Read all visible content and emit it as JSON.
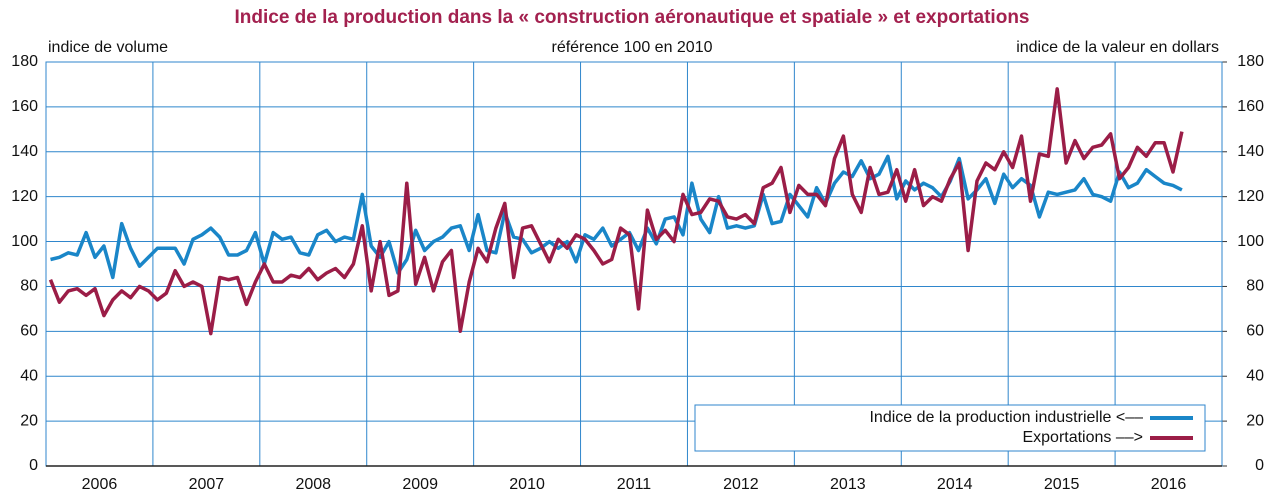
{
  "chart_data": {
    "type": "line",
    "title": "Indice de la production dans la « construction aéronautique et spatiale » et exportations",
    "subtitle": "référence 100 en 2010",
    "y_label": "indice de volume",
    "y2_label": "indice de la valeur en dollars",
    "categories": [
      null,
      null,
      null,
      null,
      null,
      null,
      "2006",
      null,
      null,
      null,
      null,
      null,
      null,
      null,
      null,
      null,
      null,
      null,
      "2007",
      null,
      null,
      null,
      null,
      null,
      null,
      null,
      null,
      null,
      null,
      null,
      "2008",
      null,
      null,
      null,
      null,
      null,
      null,
      null,
      null,
      null,
      null,
      null,
      "2009",
      null,
      null,
      null,
      null,
      null,
      null,
      null,
      null,
      null,
      null,
      null,
      "2010",
      null,
      null,
      null,
      null,
      null,
      null,
      null,
      null,
      null,
      null,
      null,
      "2011",
      null,
      null,
      null,
      null,
      null,
      null,
      null,
      null,
      null,
      null,
      null,
      "2012",
      null,
      null,
      null,
      null,
      null,
      null,
      null,
      null,
      null,
      null,
      null,
      "2013",
      null,
      null,
      null,
      null,
      null,
      null,
      null,
      null,
      null,
      null,
      null,
      "2014",
      null,
      null,
      null,
      null,
      null,
      null,
      null,
      null,
      null,
      null,
      null,
      "2015",
      null,
      null,
      null,
      null,
      null,
      null,
      null,
      null,
      null,
      null,
      null,
      "2016",
      null
    ],
    "ylim": [
      0,
      180
    ],
    "yticks": [
      0,
      20,
      40,
      60,
      80,
      100,
      120,
      140,
      160,
      180
    ],
    "y2lim": [
      0,
      180
    ],
    "y2ticks": [
      0,
      20,
      40,
      60,
      80,
      100,
      120,
      140,
      160,
      180
    ],
    "grid": true,
    "legend": "lower right",
    "series": [
      {
        "name": "Indice de la production industrielle <––",
        "color": "#1a86c8",
        "values": [
          92,
          93,
          95,
          94,
          104,
          93,
          98,
          84,
          108,
          97,
          89,
          93,
          97,
          97,
          97,
          90,
          101,
          103,
          106,
          102,
          94,
          94,
          96,
          104,
          90,
          104,
          101,
          102,
          95,
          94,
          103,
          105,
          100,
          102,
          101,
          121,
          98,
          93,
          100,
          86,
          92,
          105,
          96,
          100,
          102,
          106,
          107,
          96,
          112,
          96,
          95,
          113,
          102,
          101,
          95,
          97,
          100,
          97,
          100,
          91,
          103,
          101,
          106,
          98,
          101,
          104,
          96,
          106,
          99,
          110,
          111,
          103,
          126,
          110,
          104,
          120,
          106,
          107,
          106,
          107,
          121,
          108,
          109,
          121,
          116,
          111,
          124,
          117,
          126,
          131,
          129,
          136,
          128,
          130,
          138,
          119,
          127,
          123,
          126,
          124,
          120,
          127,
          137,
          119,
          123,
          128,
          117,
          130,
          124,
          128,
          125,
          111,
          122,
          121,
          122,
          123,
          128,
          121,
          120,
          118,
          131,
          124,
          126,
          132,
          129,
          126,
          125,
          123
        ]
      },
      {
        "name": "Exportations ––>",
        "color": "#9b1d47",
        "axis": "y2",
        "values": [
          83,
          73,
          78,
          79,
          76,
          79,
          67,
          74,
          78,
          75,
          80,
          78,
          74,
          77,
          87,
          80,
          82,
          80,
          59,
          84,
          83,
          84,
          72,
          82,
          90,
          82,
          82,
          85,
          84,
          88,
          83,
          86,
          88,
          84,
          90,
          107,
          78,
          100,
          76,
          78,
          126,
          81,
          93,
          78,
          91,
          96,
          60,
          82,
          97,
          91,
          106,
          117,
          84,
          106,
          107,
          99,
          91,
          101,
          97,
          103,
          101,
          96,
          90,
          92,
          106,
          103,
          70,
          114,
          101,
          105,
          100,
          121,
          112,
          113,
          119,
          118,
          111,
          110,
          112,
          108,
          124,
          126,
          133,
          113,
          125,
          121,
          121,
          116,
          137,
          147,
          121,
          113,
          133,
          121,
          122,
          132,
          118,
          132,
          116,
          120,
          118,
          128,
          135,
          96,
          127,
          135,
          132,
          140,
          133,
          147,
          118,
          139,
          138,
          168,
          135,
          145,
          137,
          142,
          143,
          148,
          128,
          133,
          142,
          138,
          144,
          144,
          131,
          149
        ]
      }
    ]
  }
}
